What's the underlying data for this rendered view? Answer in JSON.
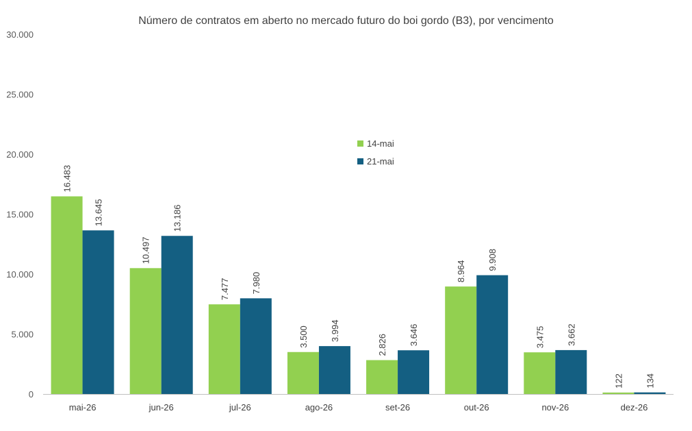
{
  "chart_data": {
    "type": "bar",
    "title": "Número de contratos em aberto no mercado futuro do boi gordo (B3), por vencimento",
    "xlabel": "",
    "ylabel": "",
    "ylim": [
      0,
      30000
    ],
    "yticks": [
      "0",
      "5.000",
      "10.000",
      "15.000",
      "20.000",
      "25.000",
      "30.000"
    ],
    "ytick_values": [
      0,
      5000,
      10000,
      15000,
      20000,
      25000,
      30000
    ],
    "grid": false,
    "legend_position": "center-top",
    "categories": [
      "mai-26",
      "jun-26",
      "jul-26",
      "ago-26",
      "set-26",
      "out-26",
      "nov-26",
      "dez-26"
    ],
    "series": [
      {
        "name": "14-mai",
        "color": "#92D050",
        "values": [
          16483,
          10497,
          7477,
          3500,
          2826,
          8964,
          3475,
          122
        ],
        "labels": [
          "16.483",
          "10.497",
          "7.477",
          "3.500",
          "2.826",
          "8.964",
          "3.475",
          "122"
        ]
      },
      {
        "name": "21-mai",
        "color": "#145F82",
        "values": [
          13645,
          13186,
          7980,
          3994,
          3646,
          9908,
          3662,
          134
        ],
        "labels": [
          "13.645",
          "13.186",
          "7.980",
          "3.994",
          "3.646",
          "9.908",
          "3.662",
          "134"
        ]
      }
    ]
  }
}
